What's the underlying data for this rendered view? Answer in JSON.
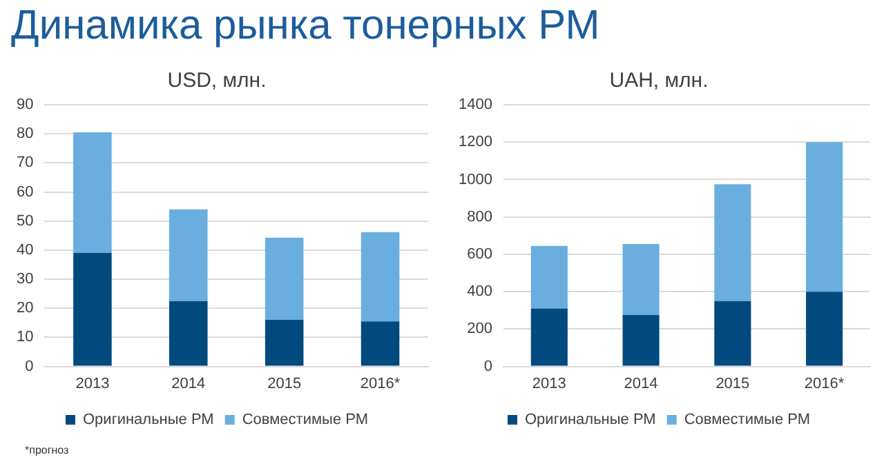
{
  "chart_data": [
    {
      "type": "bar",
      "title": "Динамика рынка тонерных РМ",
      "subtitle": "USD, млн.",
      "categories": [
        "2013",
        "2014",
        "2015",
        "2016*"
      ],
      "stacked": true,
      "series": [
        {
          "name": "Оригинальные РМ",
          "color": "#004a80",
          "values": [
            39,
            22.5,
            16,
            15.5
          ]
        },
        {
          "name": "Совместимые РМ",
          "color": "#6aaee0",
          "values": [
            41.5,
            31.5,
            28.3,
            30.7
          ]
        }
      ],
      "ylim": [
        0,
        90
      ],
      "yticks": [
        0,
        10,
        20,
        30,
        40,
        50,
        60,
        70,
        80,
        90
      ],
      "grid": "y",
      "legend": "bottom",
      "annotations": [
        "*прогноз"
      ]
    },
    {
      "type": "bar",
      "title": "UAH, млн.",
      "categories": [
        "2013",
        "2014",
        "2015",
        "2016*"
      ],
      "stacked": true,
      "series": [
        {
          "name": "Оригинальные РМ",
          "color": "#004a80",
          "values": [
            310,
            275,
            350,
            400
          ]
        },
        {
          "name": "Совместимые РМ",
          "color": "#6aaee0",
          "values": [
            335,
            380,
            625,
            800
          ]
        }
      ],
      "ylim": [
        0,
        1400
      ],
      "yticks": [
        0,
        200,
        400,
        600,
        800,
        1000,
        1200,
        1400
      ],
      "grid": "y",
      "legend": "bottom"
    }
  ]
}
